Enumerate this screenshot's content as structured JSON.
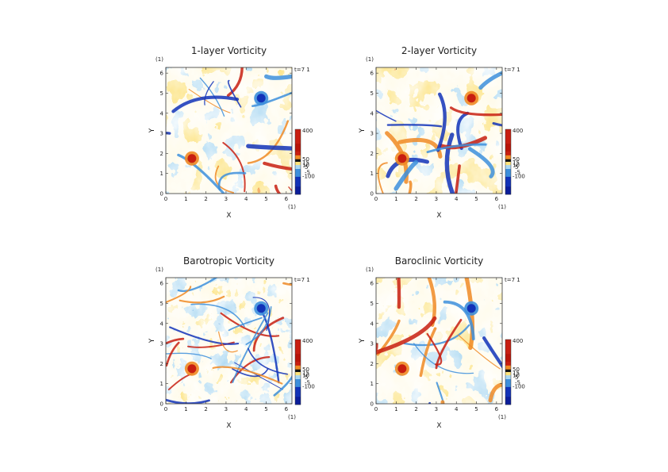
{
  "chart_data": [
    {
      "type": "heatmap",
      "title": "1-layer Vorticity",
      "xlabel": "X",
      "ylabel": "Y",
      "x_unit": "(1)",
      "y_unit": "(1)",
      "time_label": "t=7 1",
      "xlim": [
        0,
        6.283
      ],
      "ylim": [
        0,
        6.283
      ],
      "x_ticks": [
        "0",
        "1",
        "2",
        "3",
        "4",
        "5",
        "6"
      ],
      "y_ticks": [
        "0",
        "1",
        "2",
        "3",
        "4",
        "5",
        "6"
      ],
      "colorbar_ticks": [
        "400",
        "50",
        "15",
        "10",
        "5",
        "-5",
        "-100"
      ],
      "vortices": [
        {
          "x": 1.3,
          "y": 1.75,
          "sign": "positive"
        },
        {
          "x": 4.75,
          "y": 4.75,
          "sign": "negative"
        }
      ]
    },
    {
      "type": "heatmap",
      "title": "2-layer Vorticity",
      "xlabel": "X",
      "ylabel": "Y",
      "x_unit": "(1)",
      "y_unit": "(1)",
      "time_label": "t=7 1",
      "xlim": [
        0,
        6.283
      ],
      "ylim": [
        0,
        6.283
      ],
      "x_ticks": [
        "0",
        "1",
        "2",
        "3",
        "4",
        "5",
        "6"
      ],
      "y_ticks": [
        "0",
        "1",
        "2",
        "3",
        "4",
        "5",
        "6"
      ],
      "colorbar_ticks": [
        "400",
        "50",
        "15",
        "10",
        "5",
        "-5",
        "-100"
      ],
      "vortices": [
        {
          "x": 1.3,
          "y": 1.75,
          "sign": "positive"
        },
        {
          "x": 4.75,
          "y": 4.75,
          "sign": "positive"
        }
      ]
    },
    {
      "type": "heatmap",
      "title": "Barotropic Vorticity",
      "xlabel": "X",
      "ylabel": "Y",
      "x_unit": "(1)",
      "y_unit": "(1)",
      "time_label": "t=7 1",
      "xlim": [
        0,
        6.283
      ],
      "ylim": [
        0,
        6.283
      ],
      "x_ticks": [
        "0",
        "1",
        "2",
        "3",
        "4",
        "5",
        "6"
      ],
      "y_ticks": [
        "0",
        "1",
        "2",
        "3",
        "4",
        "5",
        "6"
      ],
      "colorbar_ticks": [
        "400",
        "50",
        "15",
        "10",
        "5",
        "-5",
        "-100"
      ],
      "vortices": [
        {
          "x": 1.3,
          "y": 1.75,
          "sign": "positive"
        },
        {
          "x": 4.75,
          "y": 4.75,
          "sign": "negative"
        }
      ]
    },
    {
      "type": "heatmap",
      "title": "Baroclinic Vorticity",
      "xlabel": "X",
      "ylabel": "Y",
      "x_unit": "(1)",
      "y_unit": "(1)",
      "time_label": "t=7 1",
      "xlim": [
        0,
        6.283
      ],
      "ylim": [
        0,
        6.283
      ],
      "x_ticks": [
        "0",
        "1",
        "2",
        "3",
        "4",
        "5",
        "6"
      ],
      "y_ticks": [
        "0",
        "1",
        "2",
        "3",
        "4",
        "5",
        "6"
      ],
      "colorbar_ticks": [
        "400",
        "50",
        "15",
        "10",
        "5",
        "-5",
        "-100"
      ],
      "vortices": [
        {
          "x": 1.3,
          "y": 1.75,
          "sign": "positive"
        },
        {
          "x": 4.75,
          "y": 4.75,
          "sign": "negative"
        }
      ]
    }
  ],
  "colors": {
    "background": "#ffffff",
    "positive_strong": "#c81e10",
    "positive_mid": "#f08a24",
    "positive_weak": "#fde27a",
    "neutral": "#fffbe6",
    "negative_weak": "#a9d8f2",
    "negative_mid": "#3d8fdc",
    "negative_strong": "#1232b8",
    "axis": "#333333"
  }
}
